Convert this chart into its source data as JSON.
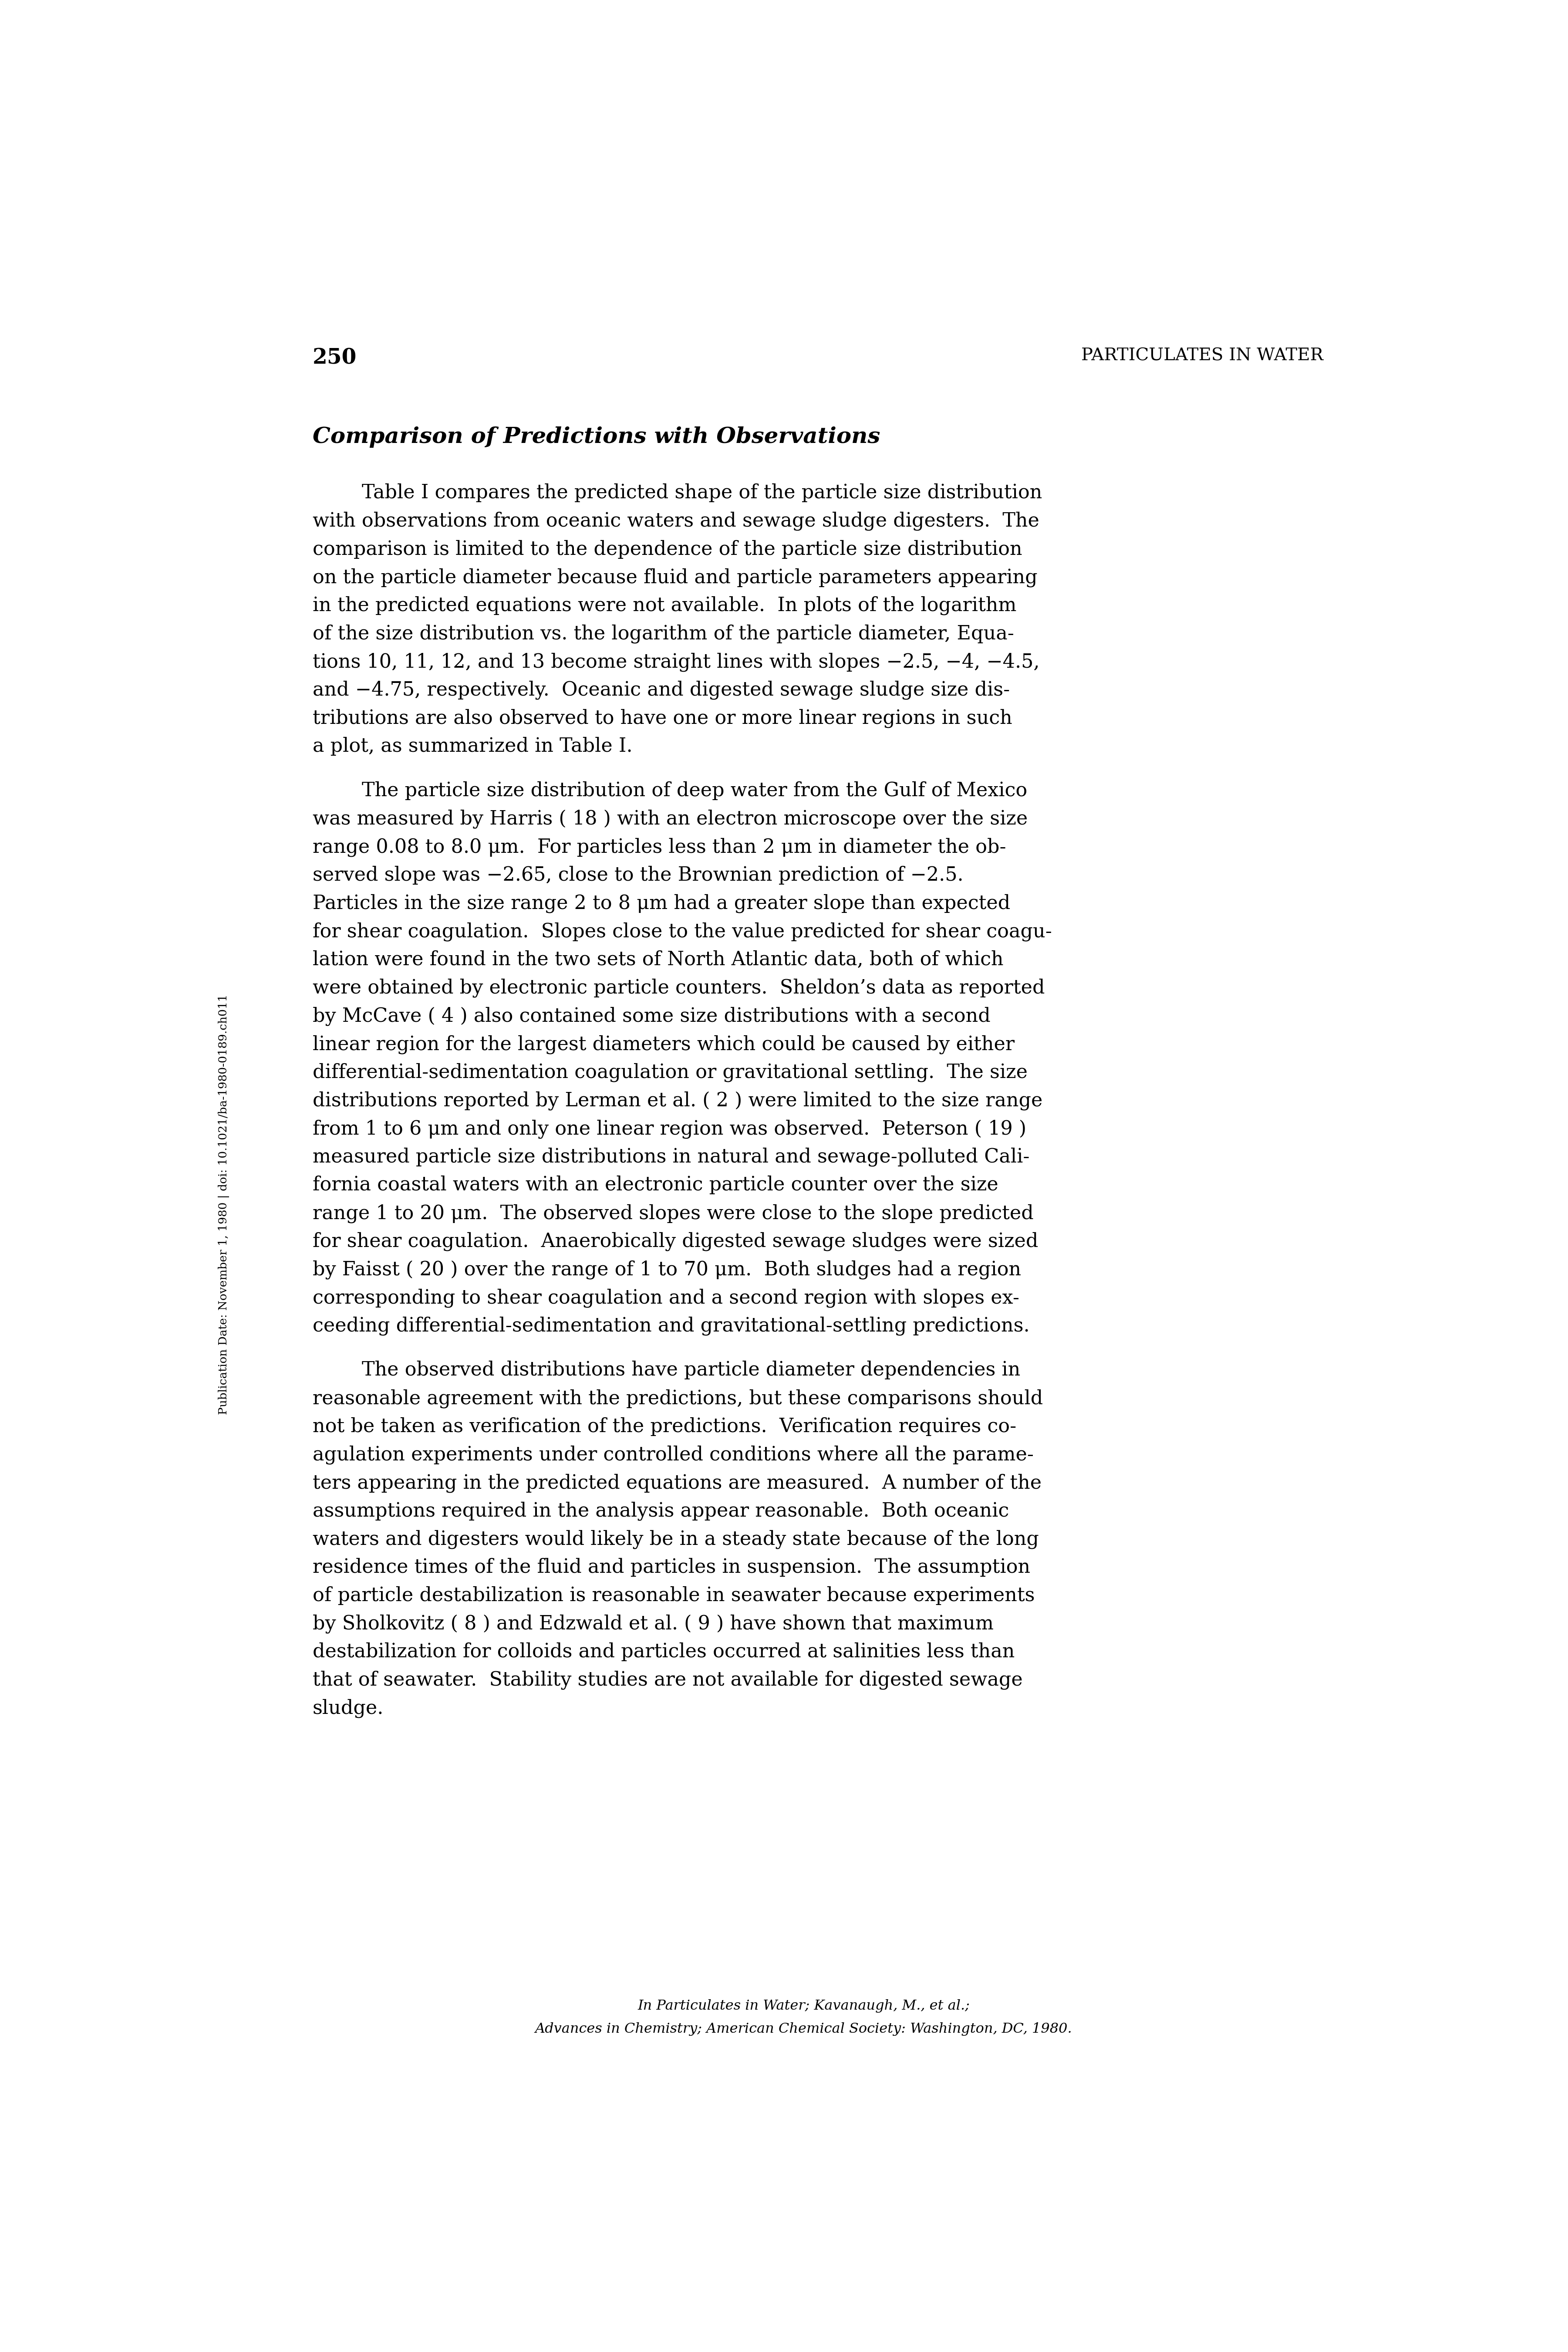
{
  "page_number": "250",
  "header_right": "PARTICULATES IN WATER",
  "section_title": "Comparison of Predictions with Observations",
  "sidebar_text": "Publication Date: November 1, 1980 | doi: 10.1021/ba-1980-0189.ch011",
  "footer_line1": "In Particulates in Water; Kavanaugh, M., et al.;",
  "footer_line2": "Advances in Chemistry; American Chemical Society: Washington, DC, 1980.",
  "bg_color": "#ffffff",
  "text_color": "#000000",
  "paragraphs_lines": [
    [
      "        Table I compares the predicted shape of the particle size distribution",
      "with observations from oceanic waters and sewage sludge digesters.  The",
      "comparison is limited to the dependence of the particle size distribution",
      "on the particle diameter because fluid and particle parameters appearing",
      "in the predicted equations were not available.  In plots of the logarithm",
      "of the size distribution vs. the logarithm of the particle diameter, Equa-",
      "tions 10, 11, 12, and 13 become straight lines with slopes −2.5, −4, −4.5,",
      "and −4.75, respectively.  Oceanic and digested sewage sludge size dis-",
      "tributions are also observed to have one or more linear regions in such",
      "a plot, as summarized in Table I."
    ],
    [
      "        The particle size distribution of deep water from the Gulf of Mexico",
      "was measured by Harris ( 18 ) with an electron microscope over the size",
      "range 0.08 to 8.0 μm.  For particles less than 2 μm in diameter the ob-",
      "served slope was −2.65, close to the Brownian prediction of −2.5.",
      "Particles in the size range 2 to 8 μm had a greater slope than expected",
      "for shear coagulation.  Slopes close to the value predicted for shear coagu-",
      "lation were found in the two sets of North Atlantic data, both of which",
      "were obtained by electronic particle counters.  Sheldon’s data as reported",
      "by McCave ( 4 ) also contained some size distributions with a second",
      "linear region for the largest diameters which could be caused by either",
      "differential-sedimentation coagulation or gravitational settling.  The size",
      "distributions reported by Lerman et al. ( 2 ) were limited to the size range",
      "from 1 to 6 μm and only one linear region was observed.  Peterson ( 19 )",
      "measured particle size distributions in natural and sewage-polluted Cali-",
      "fornia coastal waters with an electronic particle counter over the size",
      "range 1 to 20 μm.  The observed slopes were close to the slope predicted",
      "for shear coagulation.  Anaerobically digested sewage sludges were sized",
      "by Faisst ( 20 ) over the range of 1 to 70 μm.  Both sludges had a region",
      "corresponding to shear coagulation and a second region with slopes ex-",
      "ceeding differential-sedimentation and gravitational-settling predictions."
    ],
    [
      "        The observed distributions have particle diameter dependencies in",
      "reasonable agreement with the predictions, but these comparisons should",
      "not be taken as verification of the predictions.  Verification requires co-",
      "agulation experiments under controlled conditions where all the parame-",
      "ters appearing in the predicted equations are measured.  A number of the",
      "assumptions required in the analysis appear reasonable.  Both oceanic",
      "waters and digesters would likely be in a steady state because of the long",
      "residence times of the fluid and particles in suspension.  The assumption",
      "of particle destabilization is reasonable in seawater because experiments",
      "by Sholkovitz ( 8 ) and Edzwald et al. ( 9 ) have shown that maximum",
      "destabilization for colloids and particles occurred at salinities less than",
      "that of seawater.  Stability studies are not available for digested sewage",
      "sludge."
    ]
  ]
}
